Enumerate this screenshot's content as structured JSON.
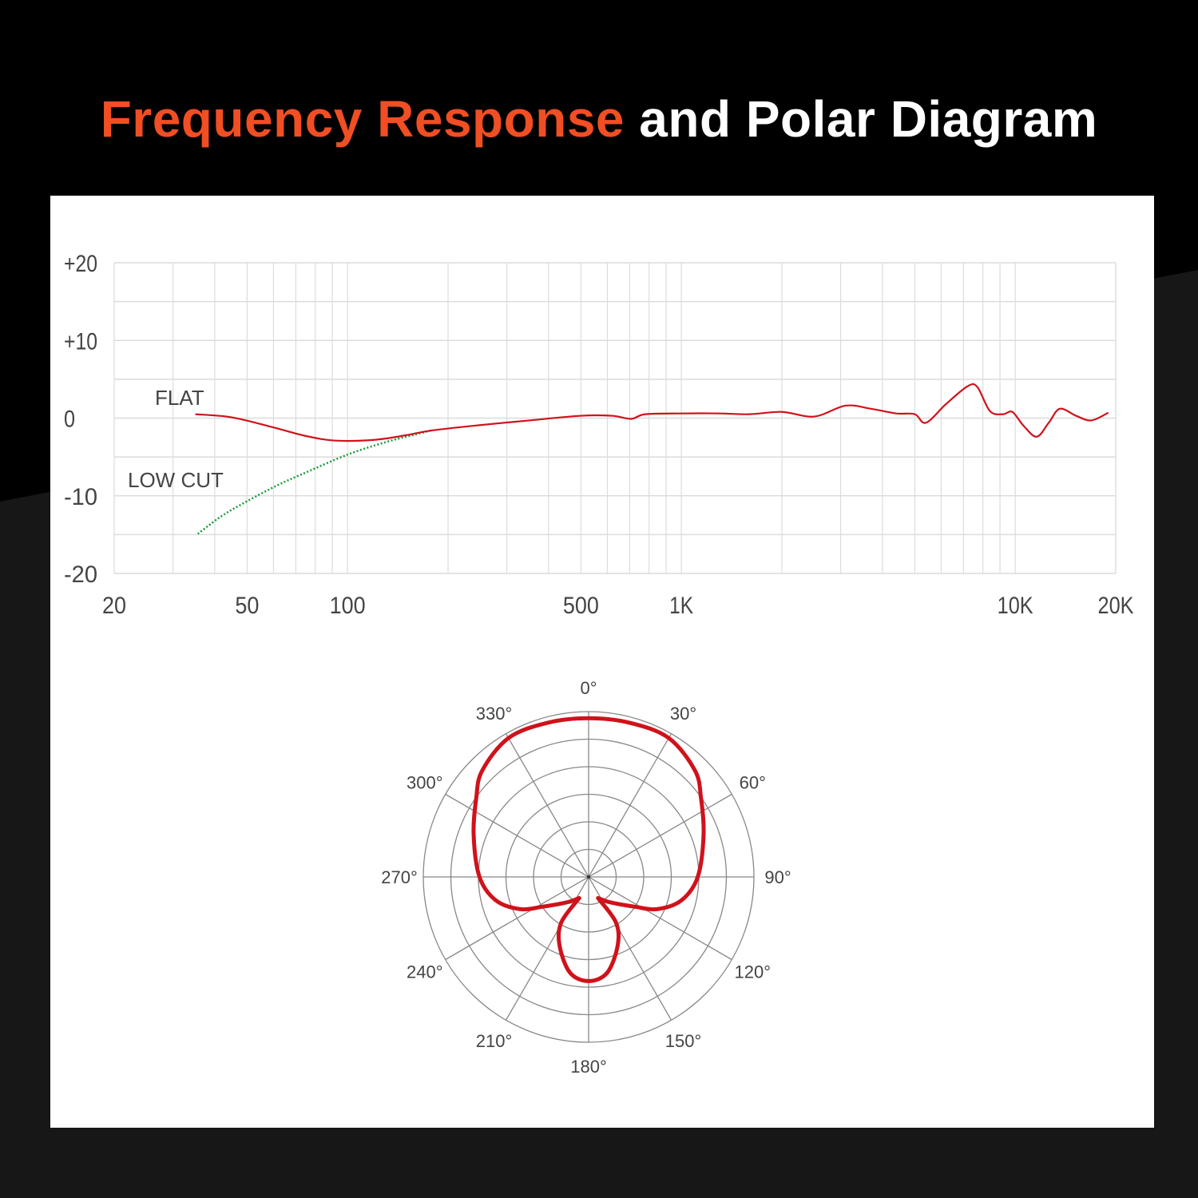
{
  "title": {
    "accent": "Frequency Response",
    "rest": "and Polar Diagram"
  },
  "colors": {
    "accent": "#f04e23",
    "curve": "#d0121b",
    "lowcut": "#1a9a3a",
    "grid": "#dcdcdc",
    "polar_grid": "#888888"
  },
  "chart_data": [
    {
      "type": "line",
      "x_scale": "log",
      "xlim": [
        20,
        20000
      ],
      "ylim": [
        -20,
        20
      ],
      "grid": true,
      "x_ticks": [
        {
          "v": 20,
          "label": "20"
        },
        {
          "v": 50,
          "label": "50"
        },
        {
          "v": 100,
          "label": "100"
        },
        {
          "v": 500,
          "label": "500"
        },
        {
          "v": 1000,
          "label": "1K"
        },
        {
          "v": 10000,
          "label": "10K"
        },
        {
          "v": 20000,
          "label": "20K"
        }
      ],
      "y_ticks": [
        {
          "v": 20,
          "label": "+20"
        },
        {
          "v": 10,
          "label": "+10"
        },
        {
          "v": 0,
          "label": "0"
        },
        {
          "v": -10,
          "label": "-10"
        },
        {
          "v": -20,
          "label": "-20"
        }
      ],
      "series": [
        {
          "name": "FLAT",
          "x": [
            35,
            45,
            60,
            75,
            92,
            120,
            150,
            178,
            250,
            350,
            500,
            620,
            707,
            780,
            1000,
            1300,
            1600,
            2000,
            2500,
            3100,
            3700,
            4400,
            5000,
            5400,
            6200,
            7200,
            7700,
            8400,
            9200,
            9800,
            10600,
            11600,
            12600,
            13600,
            15200,
            16900,
            19000
          ],
          "y": [
            0.5,
            0.1,
            -1.2,
            -2.3,
            -2.9,
            -2.8,
            -2.2,
            -1.6,
            -0.9,
            -0.3,
            0.3,
            0.3,
            -0.1,
            0.5,
            0.6,
            0.6,
            0.5,
            0.8,
            0.2,
            1.6,
            1.2,
            0.6,
            0.5,
            -0.6,
            1.8,
            4.1,
            4.0,
            0.9,
            0.5,
            0.8,
            -1.0,
            -2.4,
            -0.6,
            1.2,
            0.3,
            -0.3,
            0.7
          ]
        },
        {
          "name": "LOW CUT",
          "x": [
            35.6,
            42,
            50,
            62,
            75,
            100,
            130,
            160,
            178
          ],
          "y": [
            -14.9,
            -12.6,
            -10.7,
            -8.6,
            -7.0,
            -4.7,
            -3.1,
            -2.1,
            -1.6
          ]
        }
      ]
    },
    {
      "type": "polar",
      "angle_ticks": [
        "0°",
        "30°",
        "60°",
        "90°",
        "120°",
        "150°",
        "180°",
        "210°",
        "240°",
        "270°",
        "300°",
        "330°"
      ],
      "rings": 6,
      "series": [
        {
          "angle": [
            0,
            15,
            30,
            45,
            55,
            70,
            90,
            104,
            115,
            123,
            140,
            156
          ],
          "r": [
            0.96,
            0.965,
            0.97,
            0.91,
            0.83,
            0.74,
            0.66,
            0.58,
            0.46,
            0.33,
            0.2,
            0.14
          ]
        },
        {
          "angle": [
            156,
            149,
            157,
            169,
            180
          ],
          "r": [
            0.14,
            0.32,
            0.45,
            0.59,
            0.63
          ]
        }
      ]
    }
  ]
}
